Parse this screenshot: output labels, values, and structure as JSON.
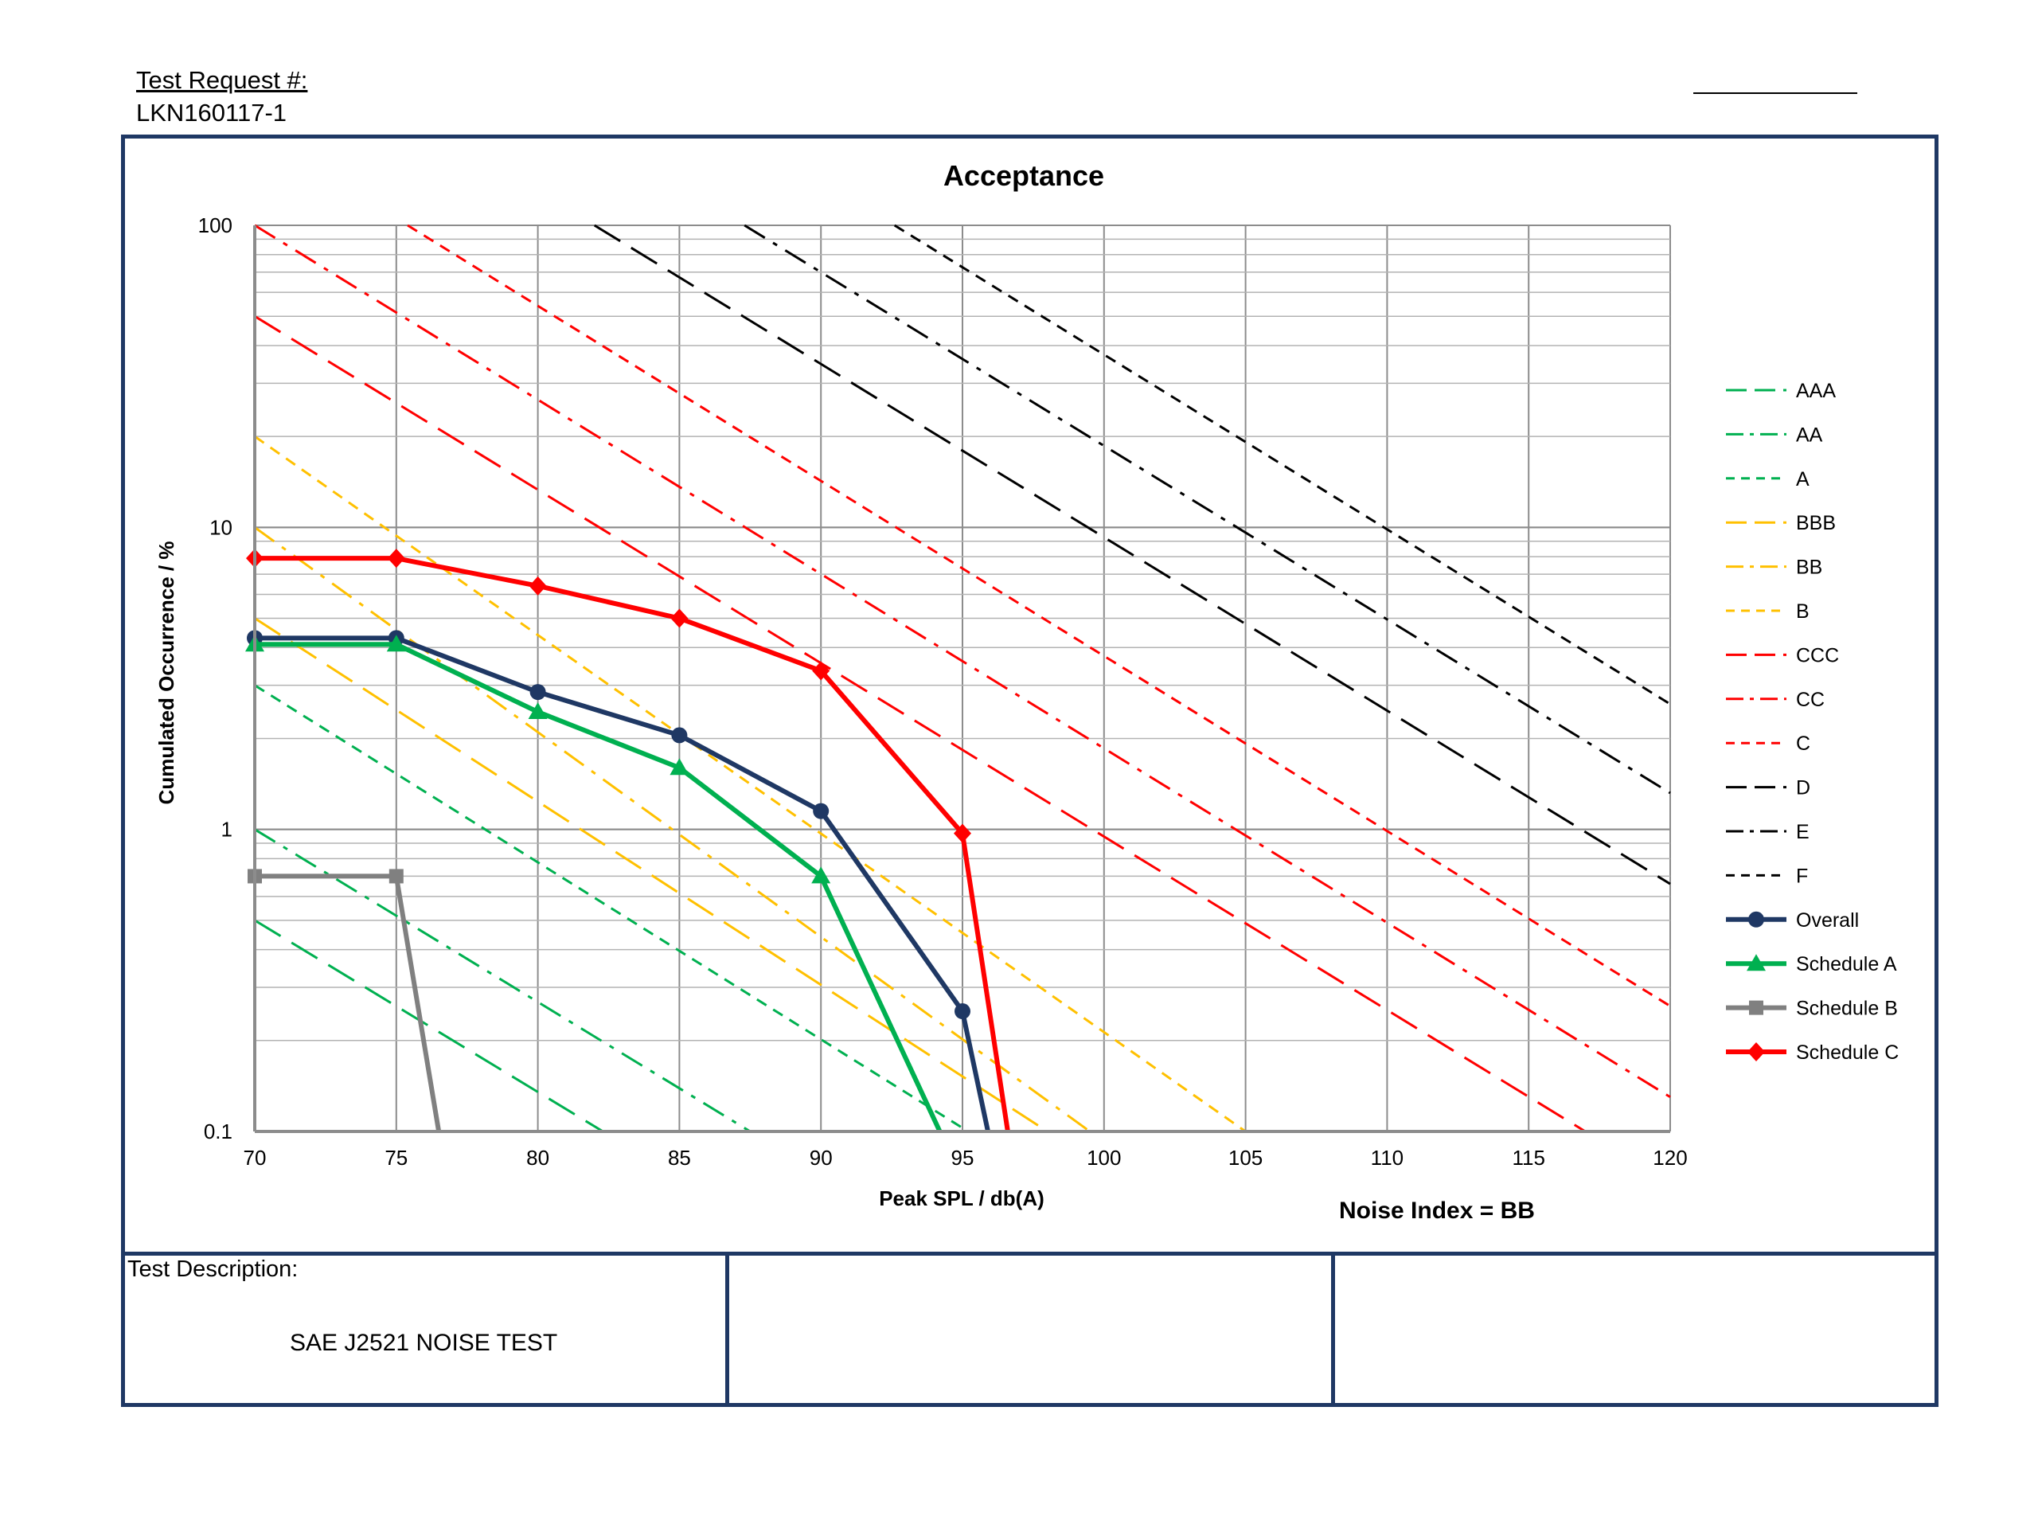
{
  "header": {
    "request_label": "Test Request #:",
    "request_value": "LKN160117-1"
  },
  "footer": {
    "description_label": "Test Description:",
    "description_value": "SAE J2521 NOISE TEST"
  },
  "chart_data": {
    "type": "line",
    "title": "Acceptance",
    "xlabel": "Peak SPL / db(A)",
    "ylabel": "Cumulated Occurrence / %",
    "annotation": "Noise Index = BB",
    "xlim": [
      70,
      120
    ],
    "ylim": [
      0.1,
      100
    ],
    "y_scale": "log",
    "x_ticks": [
      70,
      75,
      80,
      85,
      90,
      95,
      100,
      105,
      110,
      115,
      120
    ],
    "y_ticks": [
      0.1,
      1,
      10,
      100
    ],
    "y_tick_labels": [
      "0.1",
      "1",
      "10",
      "100"
    ],
    "grid": true,
    "legend_position": "right",
    "reference_lines": [
      {
        "name": "AAA",
        "color": "#00b050",
        "dash": "long",
        "points": [
          [
            70,
            0.5
          ],
          [
            82.3,
            0.1
          ]
        ]
      },
      {
        "name": "AA",
        "color": "#00b050",
        "dash": "dashdot",
        "points": [
          [
            70,
            1
          ],
          [
            87.5,
            0.1
          ]
        ]
      },
      {
        "name": "A",
        "color": "#00b050",
        "dash": "short",
        "points": [
          [
            70,
            3
          ],
          [
            95.2,
            0.1
          ]
        ]
      },
      {
        "name": "BBB",
        "color": "#ffc000",
        "dash": "long",
        "points": [
          [
            70,
            5
          ],
          [
            98,
            0.1
          ]
        ]
      },
      {
        "name": "BB",
        "color": "#ffc000",
        "dash": "dashdot",
        "points": [
          [
            70,
            10
          ],
          [
            99.5,
            0.1
          ]
        ]
      },
      {
        "name": "B",
        "color": "#ffc000",
        "dash": "short",
        "points": [
          [
            70,
            20
          ],
          [
            105,
            0.1
          ]
        ]
      },
      {
        "name": "CCC",
        "color": "#ff0000",
        "dash": "long",
        "points": [
          [
            70,
            50
          ],
          [
            117,
            0.1
          ]
        ]
      },
      {
        "name": "CC",
        "color": "#ff0000",
        "dash": "dashdot",
        "points": [
          [
            70,
            100
          ],
          [
            120,
            0.13
          ]
        ]
      },
      {
        "name": "C",
        "color": "#ff0000",
        "dash": "short",
        "points": [
          [
            75.4,
            100
          ],
          [
            120,
            0.26
          ]
        ]
      },
      {
        "name": "D",
        "color": "#000000",
        "dash": "long",
        "points": [
          [
            82,
            100
          ],
          [
            120,
            0.66
          ]
        ]
      },
      {
        "name": "E",
        "color": "#000000",
        "dash": "dashdot",
        "points": [
          [
            87.3,
            100
          ],
          [
            120,
            1.32
          ]
        ]
      },
      {
        "name": "F",
        "color": "#000000",
        "dash": "short",
        "points": [
          [
            92.6,
            100
          ],
          [
            120,
            2.6
          ]
        ]
      }
    ],
    "series": [
      {
        "name": "Overall",
        "color": "#1f3864",
        "marker": "circle",
        "points": [
          [
            70,
            4.3
          ],
          [
            75,
            4.3
          ],
          [
            80,
            2.85
          ],
          [
            85,
            2.05
          ],
          [
            90,
            1.15
          ],
          [
            95,
            0.25
          ],
          [
            95.9,
            0.1
          ]
        ]
      },
      {
        "name": "Schedule A",
        "color": "#00b050",
        "marker": "triangle",
        "points": [
          [
            70,
            4.1
          ],
          [
            75,
            4.1
          ],
          [
            80,
            2.45
          ],
          [
            85,
            1.6
          ],
          [
            90,
            0.7
          ],
          [
            94.2,
            0.1
          ]
        ]
      },
      {
        "name": "Schedule B",
        "color": "#808080",
        "marker": "square",
        "points": [
          [
            70,
            0.7
          ],
          [
            75,
            0.7
          ],
          [
            76.5,
            0.1
          ]
        ]
      },
      {
        "name": "Schedule C",
        "color": "#ff0000",
        "marker": "diamond",
        "points": [
          [
            70,
            7.9
          ],
          [
            75,
            7.9
          ],
          [
            80,
            6.4
          ],
          [
            85,
            5.0
          ],
          [
            90,
            3.35
          ],
          [
            95,
            0.97
          ],
          [
            96.6,
            0.1
          ]
        ]
      }
    ]
  }
}
